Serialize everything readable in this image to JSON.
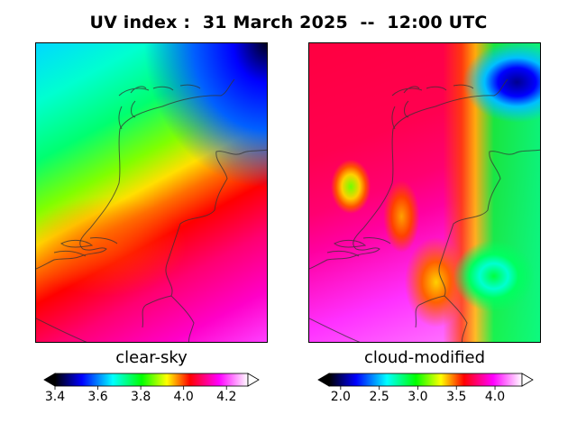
{
  "title": "UV index :  31 March 2025  --  12:00 UTC",
  "panels": [
    {
      "label": "clear-sky",
      "colorbar": {
        "min": 3.4,
        "max": 4.3,
        "ticks": [
          "3.4",
          "3.6",
          "3.8",
          "4.0",
          "4.2"
        ],
        "tick_values": [
          3.4,
          3.6,
          3.8,
          4.0,
          4.2
        ],
        "extend": "both"
      }
    },
    {
      "label": "cloud-modified",
      "colorbar": {
        "min": 1.85,
        "max": 4.35,
        "ticks": [
          "2.0",
          "2.5",
          "3.0",
          "3.5",
          "4.0"
        ],
        "tick_values": [
          2.0,
          2.5,
          3.0,
          3.5,
          4.0
        ],
        "extend": "both"
      }
    }
  ],
  "colormap": [
    "#000000",
    "#0000ff",
    "#00ffff",
    "#00ff00",
    "#ffff00",
    "#ff0000",
    "#ff00ff",
    "#ffffff"
  ]
}
